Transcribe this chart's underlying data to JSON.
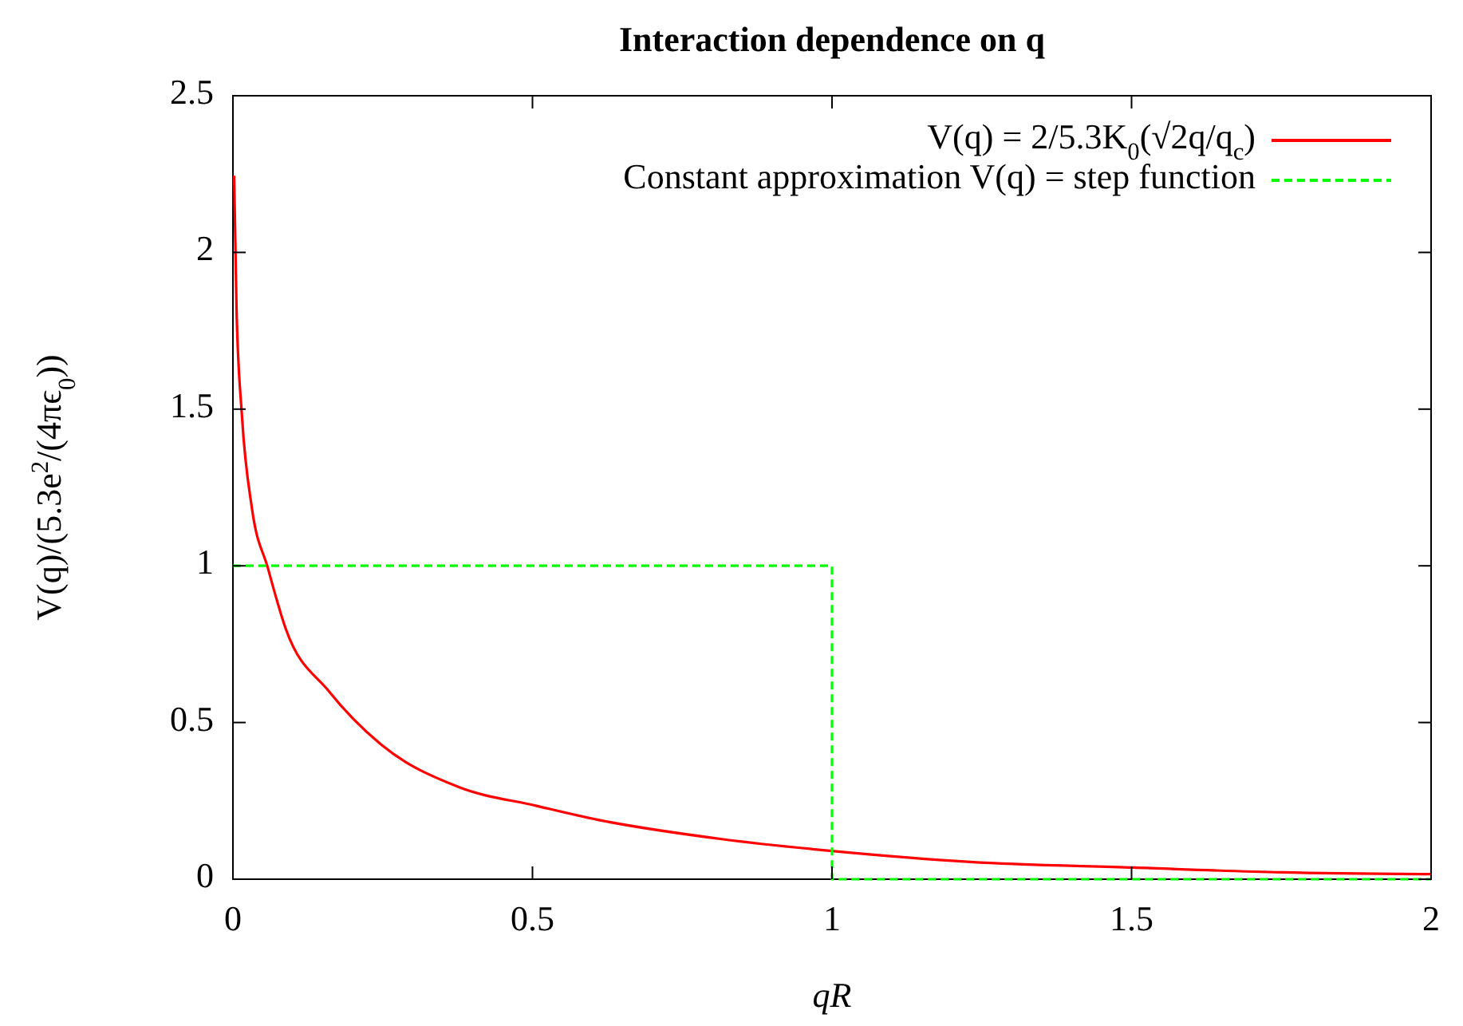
{
  "chart_data": {
    "type": "line",
    "title": "Interaction dependence on q",
    "xlabel": "qR",
    "ylabel": "V(q)/(5.3e$^{2}$/(4πϵ$_{0}$))",
    "xlim": [
      0,
      2
    ],
    "ylim": [
      0,
      2.5
    ],
    "xticks": [
      0,
      0.5,
      1,
      1.5,
      2
    ],
    "yticks": [
      0,
      0.5,
      1,
      1.5,
      2,
      2.5
    ],
    "grid": false,
    "legend": "top right",
    "series": [
      {
        "name": "V(q) = 2/5.3K$_{0}$(√2q/q$_{c}$)",
        "color": "#ff0000",
        "line_style": "solid",
        "x": [
          0.002,
          0.006,
          0.015,
          0.032,
          0.058,
          0.088,
          0.16,
          0.247,
          0.377,
          0.507,
          0.608,
          0.816,
          1.0,
          1.231,
          1.504,
          1.75,
          2.0
        ],
        "values": [
          2.245,
          1.82,
          1.48,
          1.18,
          0.995,
          0.8,
          0.6,
          0.43,
          0.294,
          0.234,
          0.19,
          0.128,
          0.09,
          0.055,
          0.037,
          0.022,
          0.016
        ]
      },
      {
        "name": "Constant approximation V(q) = step function",
        "color": "#00ff00",
        "line_style": "dashed",
        "x": [
          0,
          1,
          1,
          2
        ],
        "values": [
          1,
          1,
          0,
          0
        ]
      }
    ]
  }
}
